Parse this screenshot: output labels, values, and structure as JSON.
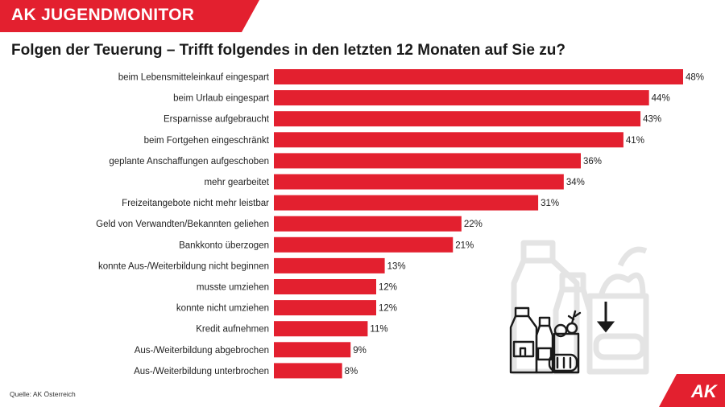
{
  "header": {
    "brand": "AK JUGENDMONITOR"
  },
  "title": "Folgen der Teuerung – Trifft folgendes in den letzten 12 Monaten auf Sie zu?",
  "source": "Quelle: AK Österreich",
  "logo": {
    "text": "AK"
  },
  "colors": {
    "accent": "#e3202f",
    "icon_dark": "#1a1a1a",
    "icon_light": "#e4e4e4"
  },
  "icons": {
    "foreground": "grocery-price-down-icon",
    "background": "grocery-outline-icon"
  },
  "chart_data": {
    "type": "bar",
    "orientation": "horizontal",
    "categories": [
      "beim Lebensmitteleinkauf eingespart",
      "beim Urlaub eingespart",
      "Ersparnisse aufgebraucht",
      "beim Fortgehen eingeschränkt",
      "geplante Anschaffungen aufgeschoben",
      "mehr gearbeitet",
      "Freizeitangebote nicht mehr leistbar",
      "Geld von Verwandten/Bekannten geliehen",
      "Bankkonto überzogen",
      "konnte Aus-/Weiterbildung nicht beginnen",
      "musste umziehen",
      "konnte nicht umziehen",
      "Kredit aufnehmen",
      "Aus-/Weiterbildung abgebrochen",
      "Aus-/Weiterbildung unterbrochen"
    ],
    "values": [
      48,
      44,
      43,
      41,
      36,
      34,
      31,
      22,
      21,
      13,
      12,
      12,
      11,
      9,
      8
    ],
    "value_labels": [
      "48%",
      "44%",
      "43%",
      "41%",
      "36%",
      "34%",
      "31%",
      "22%",
      "21%",
      "13%",
      "12%",
      "12%",
      "11%",
      "9%",
      "8%"
    ],
    "unit": "%",
    "xlim": [
      0,
      48
    ],
    "grid": false,
    "legend": "none"
  }
}
